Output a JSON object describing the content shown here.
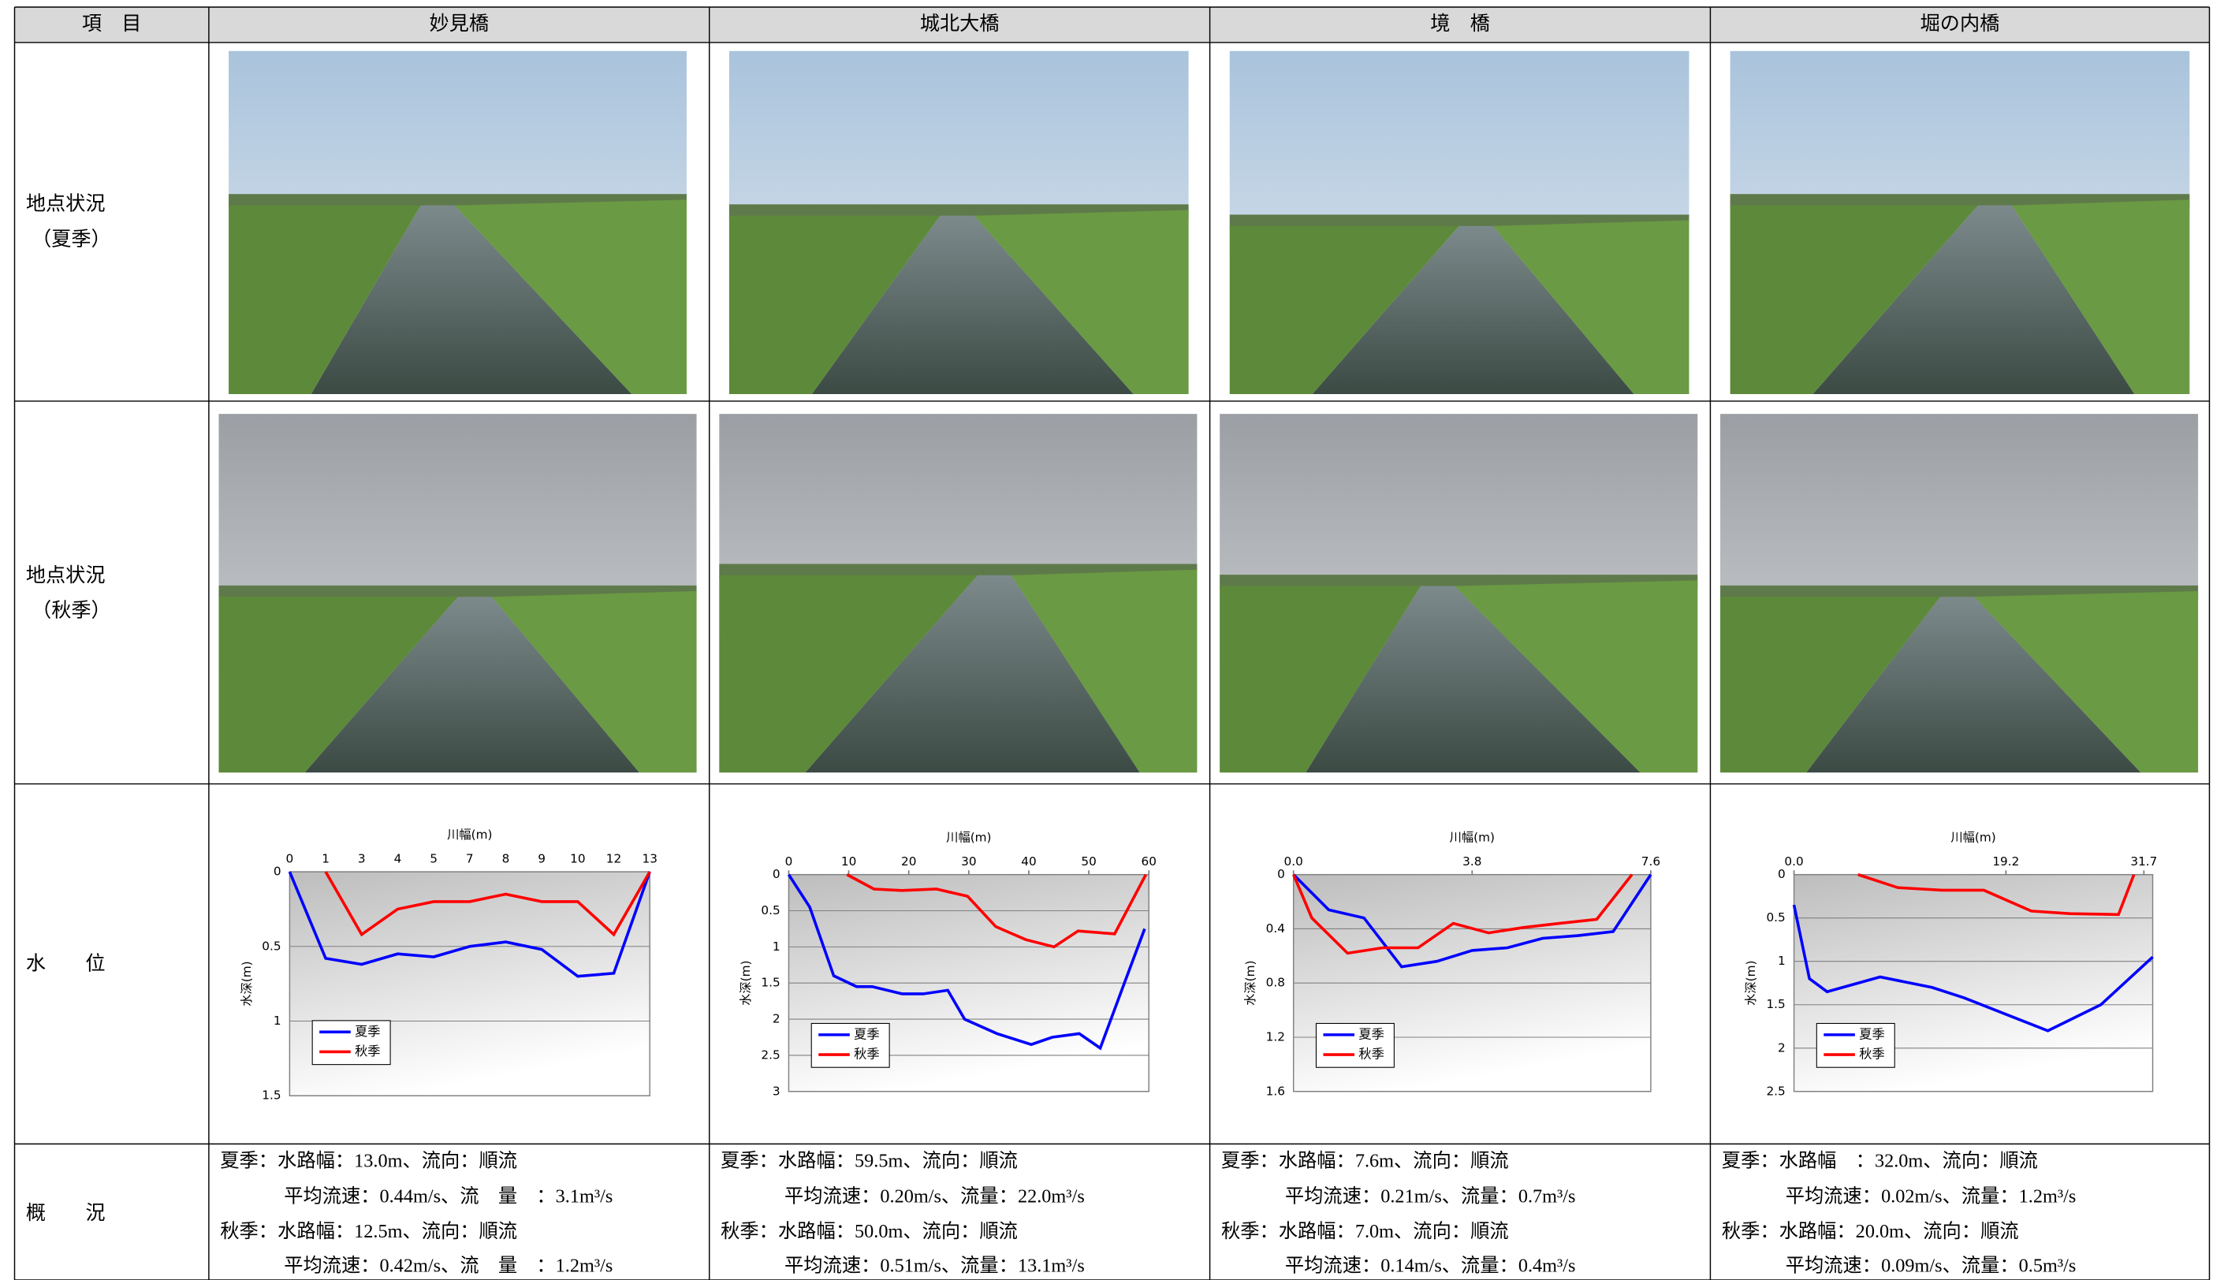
{
  "table": {
    "header": [
      "項　目",
      "妙見橋",
      "城北大橋",
      "境　橋",
      "堀の内橋"
    ],
    "row_labels": [
      [
        "地点状況",
        "（夏季）"
      ],
      [
        "地点状況",
        "（秋季）"
      ],
      [
        "水　　位"
      ],
      [
        "概　　況"
      ]
    ],
    "charts": [
      {
        "type": "line",
        "x_label": "川幅(m)",
        "y_label": "水深(m)",
        "grid": true,
        "y_inverted": true,
        "categories": [
          "0",
          "1",
          "3",
          "4",
          "5",
          "7",
          "8",
          "9",
          "10",
          "12",
          "13"
        ],
        "ylim": [
          0,
          1.5
        ],
        "yticks": [
          0,
          0.5,
          1,
          1.5
        ],
        "series": [
          {
            "name": "夏季",
            "color": "#0000ff",
            "values": [
              0,
              0.58,
              0.62,
              0.55,
              0.57,
              0.5,
              0.47,
              0.52,
              0.7,
              0.68,
              0
            ]
          },
          {
            "name": "秋季",
            "color": "#ff0000",
            "values": [
              null,
              0,
              0.42,
              0.25,
              0.2,
              0.2,
              0.15,
              0.2,
              0.2,
              0.42,
              0
            ]
          }
        ]
      },
      {
        "type": "line",
        "x_label": "川幅(m)",
        "y_label": "水深(m)",
        "grid": true,
        "y_inverted": true,
        "xlim": [
          0,
          60
        ],
        "xticks": [
          0,
          10,
          20,
          30,
          40,
          50,
          60
        ],
        "ylim": [
          0,
          3
        ],
        "yticks": [
          0,
          0.5,
          1,
          1.5,
          2,
          2.5,
          3
        ],
        "series": [
          {
            "name": "夏季",
            "color": "#0000ff",
            "x": [
              0,
              3.5,
              7.5,
              11.3,
              13.9,
              18.9,
              22.4,
              26.5,
              29.3,
              34.7,
              40.4,
              43.9,
              48.4,
              51.9,
              55.7,
              59.3
            ],
            "values": [
              0,
              0.45,
              1.4,
              1.55,
              1.55,
              1.65,
              1.65,
              1.6,
              2,
              2.2,
              2.35,
              2.25,
              2.2,
              2.4,
              1.55,
              0.75
            ]
          },
          {
            "name": "秋季",
            "color": "#ff0000",
            "x": [
              9.7,
              14.2,
              18.9,
              24.6,
              29.8,
              34.5,
              39.5,
              44.2,
              48.2,
              54.3,
              59.5
            ],
            "values": [
              0,
              0.2,
              0.22,
              0.2,
              0.3,
              0.72,
              0.9,
              1,
              0.78,
              0.82,
              0
            ]
          }
        ]
      },
      {
        "type": "line",
        "x_label": "川幅(m)",
        "y_label": "水深(m)",
        "grid": true,
        "y_inverted": true,
        "xlim": [
          0,
          7.6
        ],
        "xticks": [
          {
            "value": 0,
            "label": "0.0"
          },
          3.8,
          7.6
        ],
        "ylim": [
          0,
          1.6
        ],
        "yticks": [
          0,
          0.4,
          0.8,
          1.2,
          1.6
        ],
        "series": [
          {
            "name": "夏季",
            "color": "#0000ff",
            "x": [
              0,
              0.75,
              1.5,
              2.3,
              3.05,
              3.8,
              4.55,
              5.3,
              6.05,
              6.8,
              7.6
            ],
            "values": [
              0,
              0.26,
              0.32,
              0.68,
              0.64,
              0.56,
              0.54,
              0.47,
              0.45,
              0.42,
              0
            ]
          },
          {
            "name": "秋季",
            "color": "#ff0000",
            "x": [
              0,
              0.39,
              1.15,
              1.9,
              2.65,
              3.4,
              4.15,
              4.9,
              5.65,
              6.45,
              7.2
            ],
            "values": [
              0,
              0.32,
              0.58,
              0.54,
              0.54,
              0.36,
              0.43,
              0.39,
              0.36,
              0.33,
              0
            ]
          }
        ]
      },
      {
        "type": "line",
        "x_label": "川幅(m)",
        "y_label": "水深(m)",
        "grid": true,
        "y_inverted": true,
        "xlim": [
          0,
          32.5
        ],
        "xticks": [
          {
            "value": 0,
            "label": "0.0"
          },
          19.2,
          31.7
        ],
        "ylim": [
          0,
          2.5
        ],
        "yticks": [
          0,
          0.5,
          1,
          1.5,
          2,
          2.5
        ],
        "series": [
          {
            "name": "夏季",
            "color": "#0000ff",
            "x": [
              0,
              1.4,
              3,
              7.8,
              12.5,
              15.4,
              23,
              27.8,
              32.5
            ],
            "values": [
              0.35,
              1.2,
              1.35,
              1.18,
              1.3,
              1.42,
              1.8,
              1.5,
              0.95
            ]
          },
          {
            "name": "秋季",
            "color": "#ff0000",
            "x": [
              5.8,
              9.4,
              13.4,
              17.2,
              21.5,
              25,
              29.4,
              30.8
            ],
            "values": [
              0,
              0.15,
              0.18,
              0.18,
              0.42,
              0.45,
              0.46,
              0
            ]
          }
        ]
      }
    ],
    "summaries": [
      [
        "夏季：水路幅：13.0m、流向：順流",
        "平均流速：0.44m/s、流　量　：3.1m³/s",
        "秋季：水路幅：12.5m、流向：順流",
        "平均流速：0.42m/s、流　量　：1.2m³/s"
      ],
      [
        "夏季：水路幅：59.5m、流向：順流",
        "平均流速：0.20m/s、流量：22.0m³/s",
        "秋季：水路幅：50.0m、流向：順流",
        "平均流速：0.51m/s、流量：13.1m³/s"
      ],
      [
        "夏季：水路幅：7.6m、流向：順流",
        "平均流速：0.21m/s、流量：0.7m³/s",
        "秋季：水路幅：7.0m、流向：順流",
        "平均流速：0.14m/s、流量：0.4m³/s"
      ],
      [
        "夏季：水路幅　：32.0m、流向：順流",
        "平均流速：0.02m/s、流量：1.2m³/s",
        "秋季：水路幅：20.0m、流向：順流",
        "平均流速：0.09m/s、流量：0.5m³/s"
      ]
    ]
  }
}
